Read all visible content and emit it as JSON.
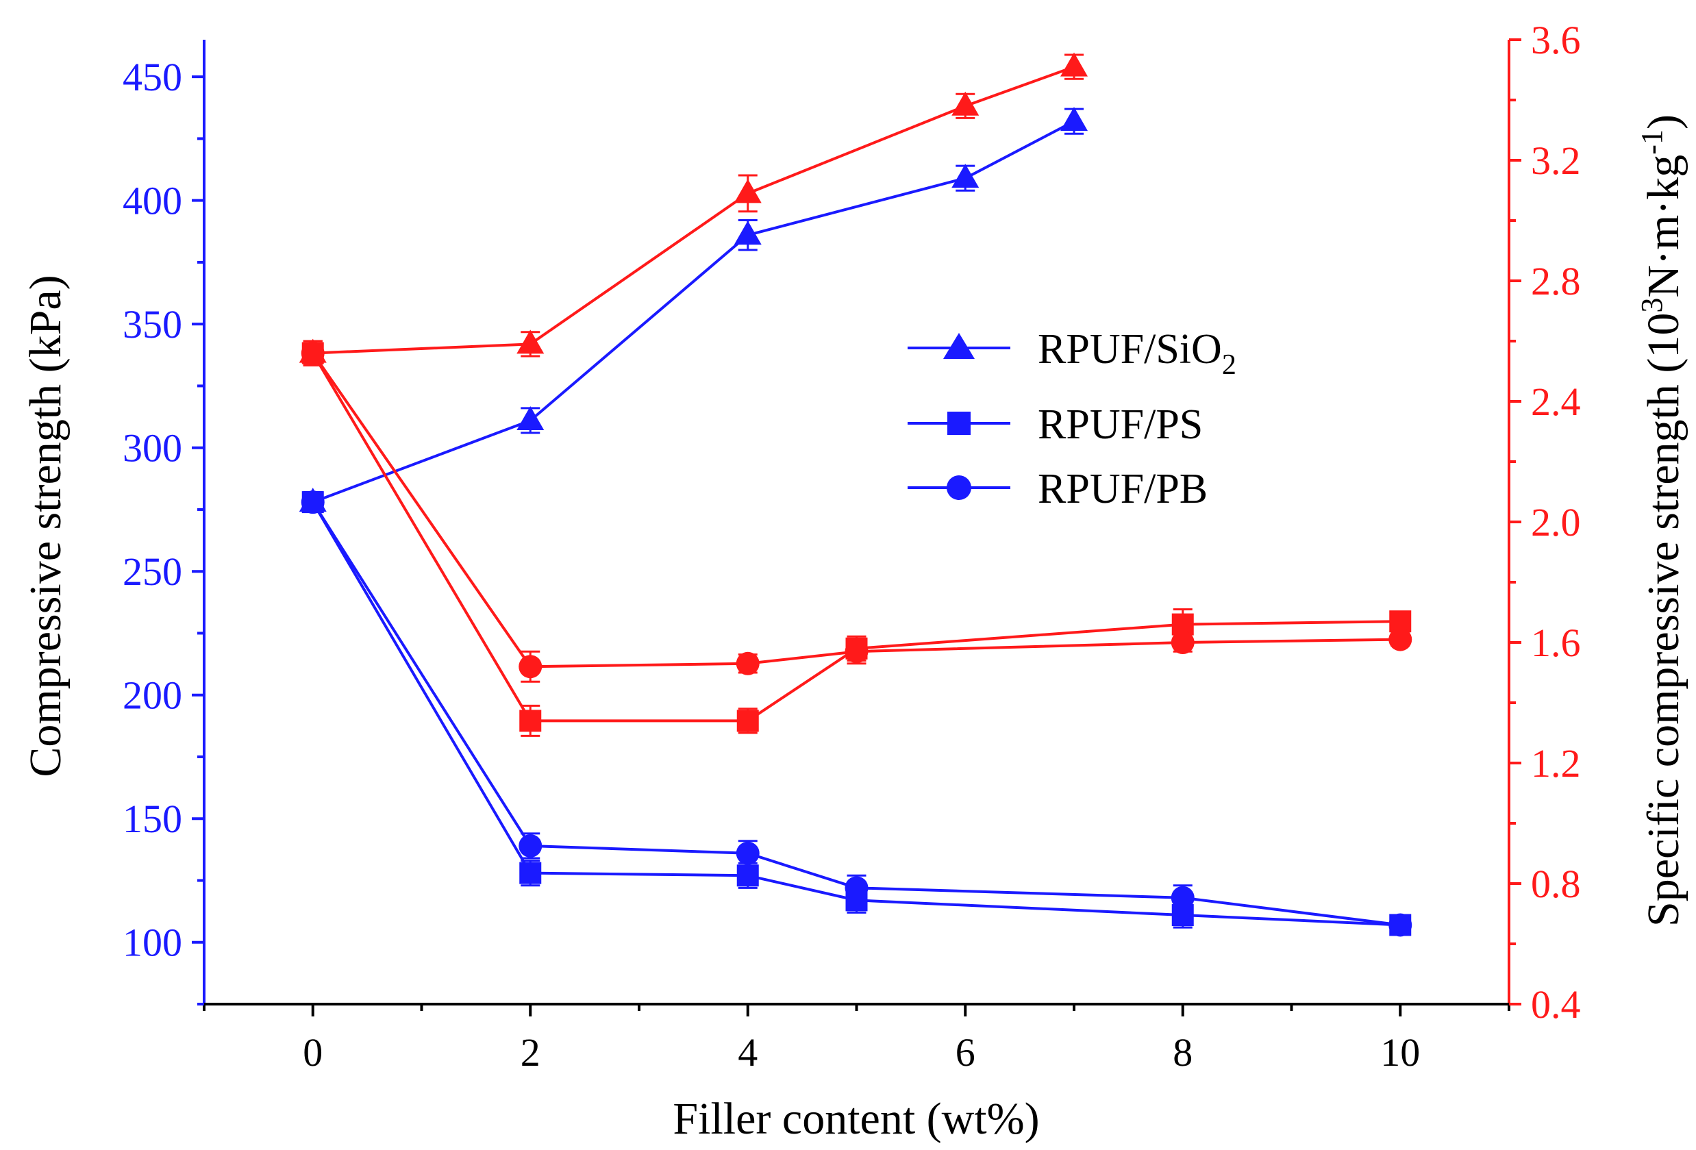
{
  "chart_data": {
    "type": "line",
    "xlabel": "Filler content (wt%)",
    "ylabel_left": "Compressive strength (kPa)",
    "ylabel_right_parts": [
      "Specific compressive strength (10",
      "3",
      "N·m·kg",
      "-1",
      ")"
    ],
    "xlim": [
      -1,
      11
    ],
    "xticks": [
      0,
      2,
      4,
      6,
      8,
      10
    ],
    "ylim_left": [
      75,
      465
    ],
    "yticks_left": [
      100,
      150,
      200,
      250,
      300,
      350,
      400,
      450
    ],
    "ylim_right": [
      0.4,
      3.6
    ],
    "yticks_right": [
      "0.4",
      "0.8",
      "1.2",
      "1.6",
      "2.0",
      "2.4",
      "2.8",
      "3.2",
      "3.6"
    ],
    "colors": {
      "left": "#1a1aff",
      "right": "#ff1a1a",
      "text": "#000000"
    },
    "legend": {
      "position": "center",
      "entries": [
        {
          "label": "RPUF/SiO",
          "sub": "2",
          "marker": "triangle"
        },
        {
          "label": "RPUF/PS",
          "sub": "",
          "marker": "square"
        },
        {
          "label": "RPUF/PB",
          "sub": "",
          "marker": "circle"
        }
      ]
    },
    "series": [
      {
        "name": "RPUF/SiO2 compressive strength",
        "axis": "left",
        "marker": "triangle",
        "x": [
          0,
          2,
          4,
          6,
          7
        ],
        "y": [
          278,
          311,
          386,
          409,
          432
        ],
        "err": [
          4,
          5,
          6,
          5,
          5
        ]
      },
      {
        "name": "RPUF/PS compressive strength",
        "axis": "left",
        "marker": "square",
        "x": [
          0,
          2,
          4,
          5,
          8,
          10
        ],
        "y": [
          278,
          128,
          127,
          117,
          111,
          107
        ],
        "err": [
          4,
          5,
          5,
          5,
          5,
          4
        ]
      },
      {
        "name": "RPUF/PB compressive strength",
        "axis": "left",
        "marker": "circle",
        "x": [
          0,
          2,
          4,
          5,
          8,
          10
        ],
        "y": [
          278,
          139,
          136,
          122,
          118,
          107
        ],
        "err": [
          4,
          5,
          5,
          5,
          5,
          4
        ]
      },
      {
        "name": "RPUF/SiO2 specific compressive strength",
        "axis": "right",
        "marker": "triangle",
        "x": [
          0,
          2,
          4,
          6,
          7
        ],
        "y": [
          2.56,
          2.59,
          3.09,
          3.38,
          3.51
        ],
        "err": [
          0.04,
          0.04,
          0.06,
          0.04,
          0.04
        ]
      },
      {
        "name": "RPUF/PS specific compressive strength",
        "axis": "right",
        "marker": "square",
        "x": [
          0,
          2,
          4,
          5,
          8,
          10
        ],
        "y": [
          2.56,
          1.34,
          1.34,
          1.58,
          1.66,
          1.67
        ],
        "err": [
          0.04,
          0.05,
          0.04,
          0.04,
          0.05,
          0.03
        ]
      },
      {
        "name": "RPUF/PB specific compressive strength",
        "axis": "right",
        "marker": "circle",
        "x": [
          0,
          2,
          4,
          5,
          8,
          10
        ],
        "y": [
          2.56,
          1.52,
          1.53,
          1.57,
          1.6,
          1.61
        ],
        "err": [
          0.04,
          0.05,
          0.03,
          0.04,
          0.03,
          0.02
        ]
      }
    ]
  }
}
